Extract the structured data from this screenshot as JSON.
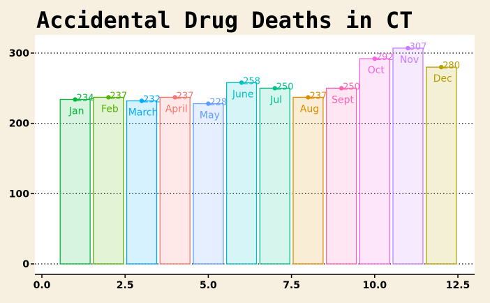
{
  "chart_data": {
    "type": "bar",
    "title": "Accidental Drug Deaths in CT",
    "xlabel": "",
    "ylabel": "",
    "xlim": [
      0,
      13
    ],
    "ylim": [
      0,
      320
    ],
    "x_ticks": [
      "0.0",
      "2.5",
      "5.0",
      "7.5",
      "10.0",
      "12.5"
    ],
    "y_ticks": [
      "0",
      "100",
      "200",
      "300"
    ],
    "grid": "horizontal dotted",
    "categories": [
      "Jan",
      "Feb",
      "March",
      "April",
      "May",
      "June",
      "Jul",
      "Aug",
      "Sept",
      "Oct",
      "Nov",
      "Dec"
    ],
    "x": [
      1,
      2,
      3,
      4,
      5,
      6,
      7,
      8,
      9,
      10,
      11,
      12
    ],
    "values": [
      234,
      237,
      232,
      237,
      228,
      258,
      250,
      237,
      250,
      292,
      307,
      280
    ],
    "value_labels": [
      "234",
      "237",
      "232",
      "237",
      "228",
      "258",
      "250",
      "237",
      "250",
      "292",
      "307",
      "280"
    ],
    "colors": [
      "#00ba38",
      "#53b400",
      "#00a9ff",
      "#f8766d",
      "#619cff",
      "#00bfc4",
      "#00c08b",
      "#de8c00",
      "#ff64b0",
      "#f564e3",
      "#c77cff",
      "#b79f00"
    ],
    "background": "#f7f0e1",
    "panel_background": "#ffffff"
  }
}
